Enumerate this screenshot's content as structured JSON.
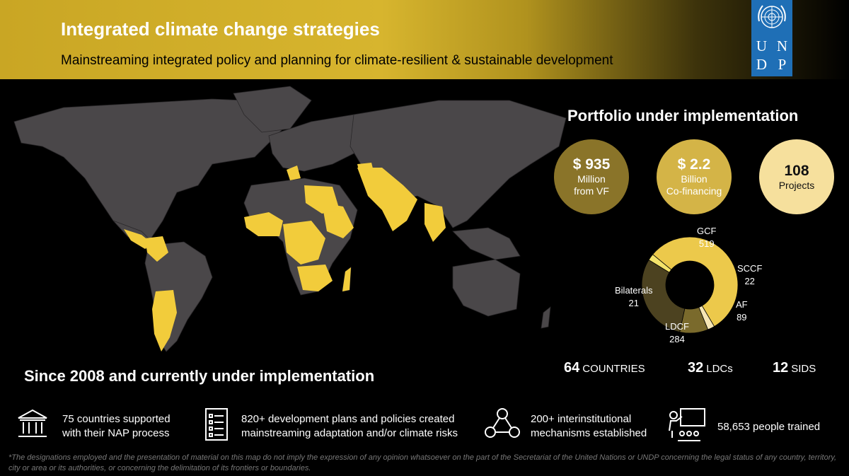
{
  "header": {
    "title": "Integrated climate change strategies",
    "subtitle": "Mainstreaming integrated policy and planning for climate-resilient & sustainable development",
    "logo_letters": [
      "U",
      "N",
      "D",
      "P"
    ],
    "logo_color": "#1f6fb6"
  },
  "map": {
    "land_color": "#4a4749",
    "highlight_color": "#f2cc3b"
  },
  "portfolio": {
    "title": "Portfolio under implementation",
    "bubbles": [
      {
        "value": "$ 935",
        "line1": "Million",
        "line2": "from VF",
        "color": "#8a7429"
      },
      {
        "value": "$ 2.2",
        "line1": "Billion",
        "line2": "Co-financing",
        "color": "#d4b447"
      },
      {
        "value": "108",
        "line1": "Projects",
        "color": "#f6e09d"
      }
    ]
  },
  "chart_data": {
    "type": "pie",
    "categories": [
      "GCF",
      "SCCF",
      "AF",
      "LDCF",
      "Bilaterals"
    ],
    "values": [
      519,
      22,
      89,
      284,
      21
    ],
    "colors": [
      "#ecc94b",
      "#f6e6b4",
      "#7a6a2c",
      "#4c4220",
      "#f4e36a"
    ]
  },
  "stats": [
    {
      "value": "64",
      "label": "COUNTRIES"
    },
    {
      "value": "32",
      "label": "LDCs"
    },
    {
      "value": "12",
      "label": "SIDS"
    }
  ],
  "since": {
    "title": "Since 2008 and currently under implementation"
  },
  "features": [
    {
      "icon": "institution-icon",
      "line1": "75 countries supported",
      "line2": "with their NAP process"
    },
    {
      "icon": "document-list-icon",
      "line1": "820+ development plans and policies created",
      "line2": "mainstreaming adaptation and/or climate risks"
    },
    {
      "icon": "network-people-icon",
      "line1": "200+ interinstitutional",
      "line2": "mechanisms established"
    },
    {
      "icon": "training-icon",
      "line1": "58,653 people trained"
    }
  ],
  "disclaimer": "*The designations employed and the presentation of material on this map do not imply the expression of any opinion whatsoever on the part of the Secretariat of the United Nations or UNDP concerning the legal status of any country, territory, city or area or its authorities, or concerning the delimitation of its frontiers or boundaries."
}
